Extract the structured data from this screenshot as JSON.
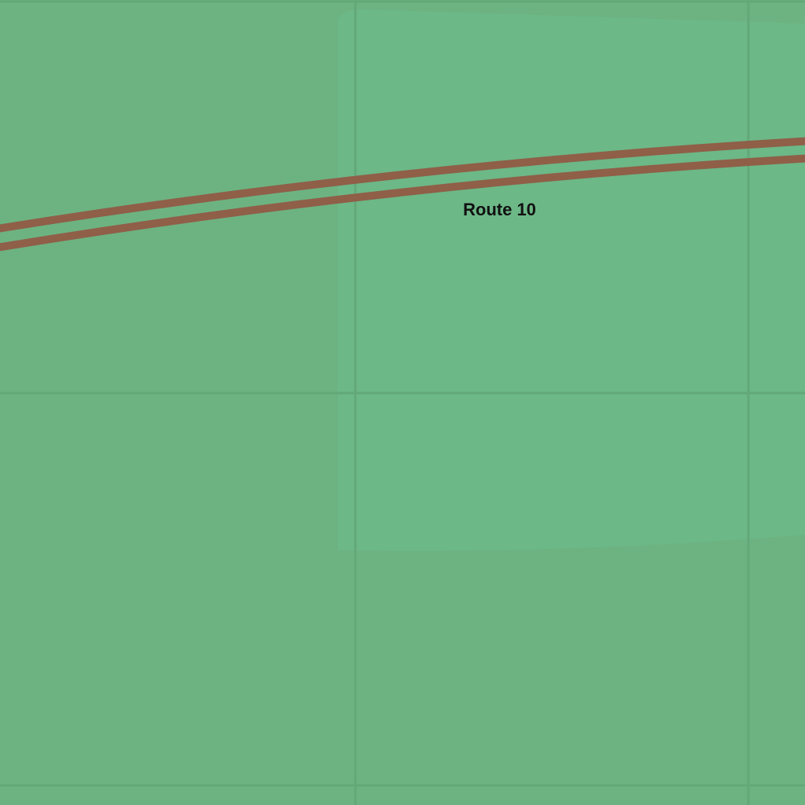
{
  "map": {
    "colors": {
      "land": "#6db382",
      "park_area": "#6cb887",
      "grid_line": "#63a877",
      "road": "#8f5f48"
    },
    "route": {
      "label": "Route 10"
    }
  }
}
